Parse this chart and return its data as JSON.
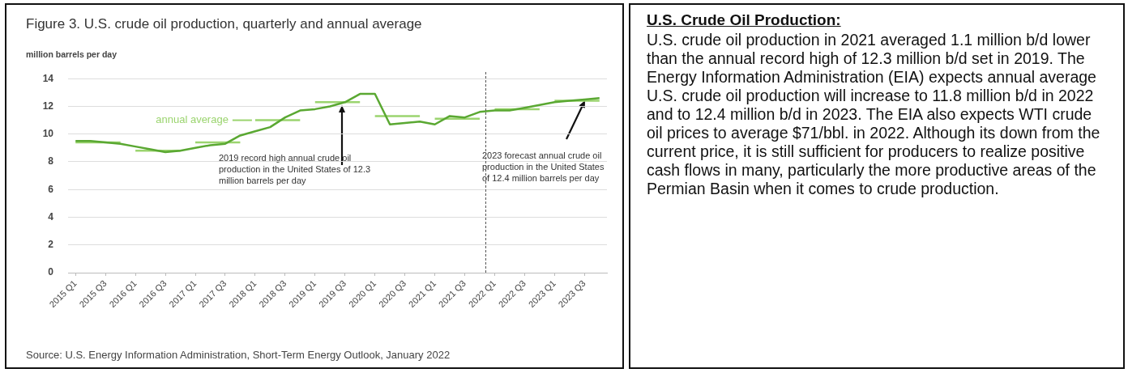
{
  "chart_data": [
    {
      "type": "line",
      "title": "Figure 3. U.S. crude oil production, quarterly and annual average",
      "ylabel": "million barrels per day",
      "categories": [
        "2015 Q1",
        null,
        "2015 Q3",
        null,
        "2016 Q1",
        null,
        "2016 Q3",
        null,
        "2017 Q1",
        null,
        "2017 Q3",
        null,
        "2018 Q1",
        null,
        "2018 Q3",
        null,
        "2019 Q1",
        null,
        "2019 Q3",
        null,
        "2020 Q1",
        null,
        "2020 Q3",
        null,
        "2021 Q1",
        null,
        "2021 Q3",
        null,
        "2022 Q1",
        null,
        "2022 Q3",
        null,
        "2023 Q1",
        null,
        "2023 Q3",
        null
      ],
      "ylim": [
        0,
        14
      ],
      "yticks": [
        0,
        2,
        4,
        6,
        8,
        10,
        12,
        14
      ],
      "grid": "y",
      "marker": "none",
      "series": [
        {
          "color": "#5aa832",
          "values": [
            9.5,
            9.5,
            9.4,
            9.3,
            9.1,
            8.9,
            8.7,
            8.8,
            9.0,
            9.2,
            9.3,
            9.9,
            10.2,
            10.5,
            11.2,
            11.7,
            11.8,
            12.0,
            12.3,
            12.9,
            12.9,
            10.7,
            10.8,
            10.9,
            10.7,
            11.3,
            11.2,
            11.6,
            11.7,
            11.7,
            11.9,
            12.1,
            12.3,
            12.4,
            12.5,
            12.6
          ]
        },
        {
          "color": "#9bd46f",
          "values": [
            9.4,
            9.4,
            9.4,
            9.4,
            null,
            null,
            null,
            null,
            null,
            null,
            null,
            null,
            null,
            null,
            null,
            null,
            null,
            null,
            null,
            null,
            null,
            null,
            null,
            null,
            null,
            null,
            null,
            null,
            null,
            null,
            null,
            null,
            null,
            null,
            null,
            null
          ]
        },
        {
          "color": "#9bd46f",
          "values": [
            null,
            null,
            null,
            null,
            8.8,
            8.8,
            8.8,
            8.8,
            null,
            null,
            null,
            null,
            null,
            null,
            null,
            null,
            null,
            null,
            null,
            null,
            null,
            null,
            null,
            null,
            null,
            null,
            null,
            null,
            null,
            null,
            null,
            null,
            null,
            null,
            null,
            null
          ]
        },
        {
          "color": "#9bd46f",
          "values": [
            null,
            null,
            null,
            null,
            null,
            null,
            null,
            null,
            9.4,
            9.4,
            9.4,
            9.4,
            null,
            null,
            null,
            null,
            null,
            null,
            null,
            null,
            null,
            null,
            null,
            null,
            null,
            null,
            null,
            null,
            null,
            null,
            null,
            null,
            null,
            null,
            null,
            null
          ]
        },
        {
          "name": "annual average",
          "color": "#9bd46f",
          "values": [
            null,
            null,
            null,
            null,
            null,
            null,
            null,
            null,
            null,
            null,
            null,
            null,
            11.0,
            11.0,
            11.0,
            11.0,
            null,
            null,
            null,
            null,
            null,
            null,
            null,
            null,
            null,
            null,
            null,
            null,
            null,
            null,
            null,
            null,
            null,
            null,
            null,
            null
          ]
        },
        {
          "color": "#9bd46f",
          "values": [
            null,
            null,
            null,
            null,
            null,
            null,
            null,
            null,
            null,
            null,
            null,
            null,
            null,
            null,
            null,
            null,
            12.3,
            12.3,
            12.3,
            12.3,
            null,
            null,
            null,
            null,
            null,
            null,
            null,
            null,
            null,
            null,
            null,
            null,
            null,
            null,
            null,
            null
          ]
        },
        {
          "color": "#9bd46f",
          "values": [
            null,
            null,
            null,
            null,
            null,
            null,
            null,
            null,
            null,
            null,
            null,
            null,
            null,
            null,
            null,
            null,
            null,
            null,
            null,
            null,
            11.3,
            11.3,
            11.3,
            11.3,
            null,
            null,
            null,
            null,
            null,
            null,
            null,
            null,
            null,
            null,
            null,
            null
          ]
        },
        {
          "color": "#9bd46f",
          "values": [
            null,
            null,
            null,
            null,
            null,
            null,
            null,
            null,
            null,
            null,
            null,
            null,
            null,
            null,
            null,
            null,
            null,
            null,
            null,
            null,
            null,
            null,
            null,
            null,
            11.1,
            11.1,
            11.1,
            11.1,
            null,
            null,
            null,
            null,
            null,
            null,
            null,
            null
          ]
        },
        {
          "color": "#9bd46f",
          "values": [
            null,
            null,
            null,
            null,
            null,
            null,
            null,
            null,
            null,
            null,
            null,
            null,
            null,
            null,
            null,
            null,
            null,
            null,
            null,
            null,
            null,
            null,
            null,
            null,
            null,
            null,
            null,
            null,
            11.8,
            11.8,
            11.8,
            11.8,
            null,
            null,
            null,
            null
          ]
        },
        {
          "color": "#9bd46f",
          "values": [
            null,
            null,
            null,
            null,
            null,
            null,
            null,
            null,
            null,
            null,
            null,
            null,
            null,
            null,
            null,
            null,
            null,
            null,
            null,
            null,
            null,
            null,
            null,
            null,
            null,
            null,
            null,
            null,
            null,
            null,
            null,
            null,
            12.4,
            12.4,
            12.4,
            12.4
          ]
        }
      ],
      "annotations": [
        "2019 record high annual crude oil production in the United States of 12.3 million barrels per day",
        "2023 forecast annual crude oil production in the United States of 12.4 million barrels per day",
        "Source: U.S. Energy Information Administration, Short-Term Energy Outlook, January 2022"
      ]
    },
    {
      "type": "other",
      "title": "U.S. Crude Oil Production:",
      "annotations": [
        "U.S. crude oil production in 2021 averaged 1.1 million b/d lower than the annual record high of 12.3 million b/d set in 2019. The Energy Information Administration (EIA) expects annual average U.S. crude oil production will increase to 11.8 million b/d in 2022 and to 12.4 million b/d in 2023. The EIA also expects WTI crude oil prices to average $71/bbl. in 2022. Although its down from the current price, it is still sufficient for producers to realize positive cash flows in many, particularly the more productive areas of the Permian Basin when it comes to crude production."
      ]
    }
  ]
}
